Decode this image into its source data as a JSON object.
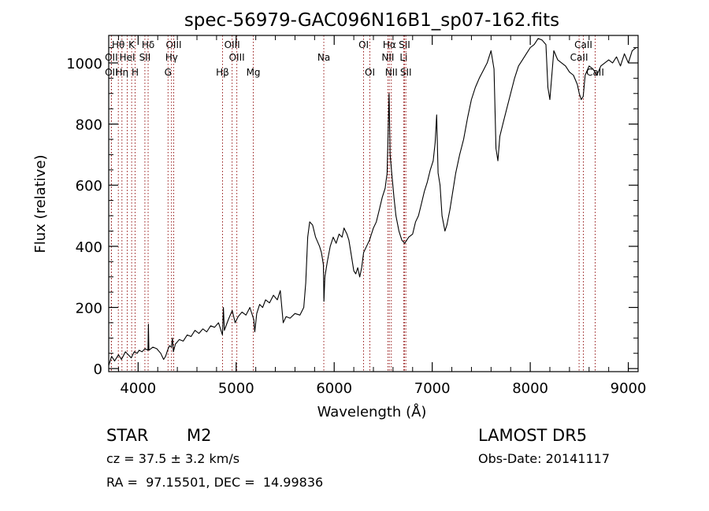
{
  "chart_data": {
    "type": "line",
    "title": "spec-56979-GAC096N16B1_sp07-162.fits",
    "xlabel": "Wavelength (Å)",
    "ylabel": "Flux (relative)",
    "xlim": [
      3700,
      9100
    ],
    "ylim": [
      -10,
      1090
    ],
    "xticks": [
      4000,
      5000,
      6000,
      7000,
      8000,
      9000
    ],
    "yticks": [
      0,
      200,
      400,
      600,
      800,
      1000
    ],
    "grid": false,
    "line_color": "#000000",
    "marker_color": "#8b0000",
    "series": [
      {
        "points": [
          [
            3700,
            10
          ],
          [
            3730,
            40
          ],
          [
            3760,
            25
          ],
          [
            3800,
            45
          ],
          [
            3830,
            30
          ],
          [
            3870,
            55
          ],
          [
            3900,
            45
          ],
          [
            3930,
            35
          ],
          [
            3960,
            55
          ],
          [
            3990,
            50
          ],
          [
            4010,
            60
          ],
          [
            4040,
            55
          ],
          [
            4070,
            65
          ],
          [
            4100,
            60
          ],
          [
            4105,
            145
          ],
          [
            4110,
            60
          ],
          [
            4150,
            70
          ],
          [
            4190,
            65
          ],
          [
            4230,
            50
          ],
          [
            4260,
            30
          ],
          [
            4280,
            40
          ],
          [
            4300,
            60
          ],
          [
            4320,
            75
          ],
          [
            4340,
            70
          ],
          [
            4350,
            100
          ],
          [
            4360,
            55
          ],
          [
            4380,
            80
          ],
          [
            4420,
            95
          ],
          [
            4460,
            90
          ],
          [
            4500,
            110
          ],
          [
            4540,
            105
          ],
          [
            4580,
            125
          ],
          [
            4620,
            115
          ],
          [
            4660,
            130
          ],
          [
            4700,
            120
          ],
          [
            4740,
            140
          ],
          [
            4780,
            135
          ],
          [
            4820,
            150
          ],
          [
            4860,
            110
          ],
          [
            4870,
            200
          ],
          [
            4880,
            125
          ],
          [
            4920,
            160
          ],
          [
            4960,
            190
          ],
          [
            4990,
            150
          ],
          [
            5020,
            170
          ],
          [
            5060,
            185
          ],
          [
            5100,
            175
          ],
          [
            5140,
            200
          ],
          [
            5180,
            160
          ],
          [
            5190,
            120
          ],
          [
            5210,
            180
          ],
          [
            5240,
            210
          ],
          [
            5270,
            200
          ],
          [
            5300,
            225
          ],
          [
            5340,
            215
          ],
          [
            5380,
            240
          ],
          [
            5420,
            225
          ],
          [
            5450,
            255
          ],
          [
            5480,
            150
          ],
          [
            5510,
            170
          ],
          [
            5550,
            165
          ],
          [
            5600,
            180
          ],
          [
            5650,
            175
          ],
          [
            5690,
            200
          ],
          [
            5710,
            280
          ],
          [
            5730,
            430
          ],
          [
            5750,
            480
          ],
          [
            5780,
            470
          ],
          [
            5810,
            430
          ],
          [
            5850,
            400
          ],
          [
            5870,
            380
          ],
          [
            5890,
            340
          ],
          [
            5895,
            220
          ],
          [
            5905,
            300
          ],
          [
            5930,
            350
          ],
          [
            5960,
            400
          ],
          [
            5990,
            430
          ],
          [
            6020,
            410
          ],
          [
            6050,
            440
          ],
          [
            6080,
            430
          ],
          [
            6100,
            460
          ],
          [
            6130,
            440
          ],
          [
            6150,
            420
          ],
          [
            6170,
            380
          ],
          [
            6200,
            320
          ],
          [
            6220,
            310
          ],
          [
            6240,
            330
          ],
          [
            6260,
            300
          ],
          [
            6280,
            330
          ],
          [
            6300,
            380
          ],
          [
            6330,
            400
          ],
          [
            6360,
            420
          ],
          [
            6400,
            460
          ],
          [
            6430,
            480
          ],
          [
            6460,
            520
          ],
          [
            6490,
            560
          ],
          [
            6520,
            590
          ],
          [
            6540,
            640
          ],
          [
            6560,
            900
          ],
          [
            6570,
            700
          ],
          [
            6590,
            630
          ],
          [
            6610,
            560
          ],
          [
            6630,
            500
          ],
          [
            6660,
            450
          ],
          [
            6690,
            420
          ],
          [
            6720,
            410
          ],
          [
            6760,
            430
          ],
          [
            6800,
            440
          ],
          [
            6830,
            480
          ],
          [
            6860,
            500
          ],
          [
            6890,
            540
          ],
          [
            6920,
            580
          ],
          [
            6950,
            610
          ],
          [
            6980,
            650
          ],
          [
            7010,
            680
          ],
          [
            7030,
            740
          ],
          [
            7045,
            830
          ],
          [
            7060,
            640
          ],
          [
            7080,
            600
          ],
          [
            7100,
            500
          ],
          [
            7130,
            450
          ],
          [
            7150,
            470
          ],
          [
            7180,
            520
          ],
          [
            7210,
            580
          ],
          [
            7240,
            640
          ],
          [
            7280,
            700
          ],
          [
            7320,
            750
          ],
          [
            7360,
            820
          ],
          [
            7400,
            880
          ],
          [
            7440,
            920
          ],
          [
            7480,
            950
          ],
          [
            7520,
            975
          ],
          [
            7560,
            1000
          ],
          [
            7600,
            1040
          ],
          [
            7630,
            980
          ],
          [
            7650,
            720
          ],
          [
            7670,
            680
          ],
          [
            7690,
            760
          ],
          [
            7720,
            800
          ],
          [
            7760,
            850
          ],
          [
            7800,
            900
          ],
          [
            7840,
            950
          ],
          [
            7880,
            990
          ],
          [
            7920,
            1010
          ],
          [
            7960,
            1030
          ],
          [
            8000,
            1050
          ],
          [
            8040,
            1060
          ],
          [
            8080,
            1080
          ],
          [
            8120,
            1075
          ],
          [
            8160,
            1060
          ],
          [
            8180,
            920
          ],
          [
            8200,
            880
          ],
          [
            8240,
            1040
          ],
          [
            8280,
            1010
          ],
          [
            8320,
            1000
          ],
          [
            8360,
            990
          ],
          [
            8400,
            970
          ],
          [
            8440,
            960
          ],
          [
            8480,
            930
          ],
          [
            8500,
            900
          ],
          [
            8520,
            880
          ],
          [
            8540,
            890
          ],
          [
            8560,
            960
          ],
          [
            8600,
            990
          ],
          [
            8640,
            980
          ],
          [
            8680,
            960
          ],
          [
            8720,
            990
          ],
          [
            8760,
            1000
          ],
          [
            8800,
            1010
          ],
          [
            8840,
            1000
          ],
          [
            8880,
            1020
          ],
          [
            8920,
            990
          ],
          [
            8960,
            1030
          ],
          [
            9000,
            1000
          ],
          [
            9040,
            1040
          ],
          [
            9080,
            1050
          ]
        ]
      }
    ],
    "line_markers": [
      {
        "label": "Hθ",
        "x": 3798,
        "row": 0
      },
      {
        "label": "OII",
        "x": 3727,
        "row": 1
      },
      {
        "label": "OII",
        "x": 3727,
        "row": 2
      },
      {
        "label": "K",
        "x": 3934,
        "row": 0
      },
      {
        "label": "HeI",
        "x": 3889,
        "row": 1
      },
      {
        "label": "Hη",
        "x": 3835,
        "row": 2
      },
      {
        "label": "H",
        "x": 3969,
        "row": 2
      },
      {
        "label": "Hδ",
        "x": 4102,
        "row": 0
      },
      {
        "label": "SII",
        "x": 4069,
        "row": 1
      },
      {
        "label": "OIII",
        "x": 4363,
        "row": 0
      },
      {
        "label": "Hγ",
        "x": 4341,
        "row": 1
      },
      {
        "label": "G",
        "x": 4305,
        "row": 2
      },
      {
        "label": "OIII",
        "x": 4959,
        "row": 0
      },
      {
        "label": "OIII",
        "x": 5007,
        "row": 1
      },
      {
        "label": "Hβ",
        "x": 4861,
        "row": 2
      },
      {
        "label": "Mg",
        "x": 5175,
        "row": 2
      },
      {
        "label": "Na",
        "x": 5894,
        "row": 1
      },
      {
        "label": "OI",
        "x": 6300,
        "row": 0
      },
      {
        "label": "OI",
        "x": 6364,
        "row": 2
      },
      {
        "label": "Hα",
        "x": 6563,
        "row": 0
      },
      {
        "label": "NII",
        "x": 6548,
        "row": 1
      },
      {
        "label": "NII",
        "x": 6583,
        "row": 2
      },
      {
        "label": "SII",
        "x": 6717,
        "row": 0
      },
      {
        "label": "Li",
        "x": 6708,
        "row": 1
      },
      {
        "label": "SII",
        "x": 6731,
        "row": 2
      },
      {
        "label": "CaII",
        "x": 8542,
        "row": 0
      },
      {
        "label": "CaII",
        "x": 8498,
        "row": 1
      },
      {
        "label": "CaII",
        "x": 8662,
        "row": 2
      }
    ]
  },
  "info": {
    "class_label": "STAR",
    "subclass_label": "M2",
    "survey_label": "LAMOST DR5",
    "cz_text": "cz = 37.5 ± 3.2 km/s",
    "obsdate_text": "Obs-Date: 20141117",
    "coords_text": "RA =  97.15501, DEC =  14.99836"
  }
}
